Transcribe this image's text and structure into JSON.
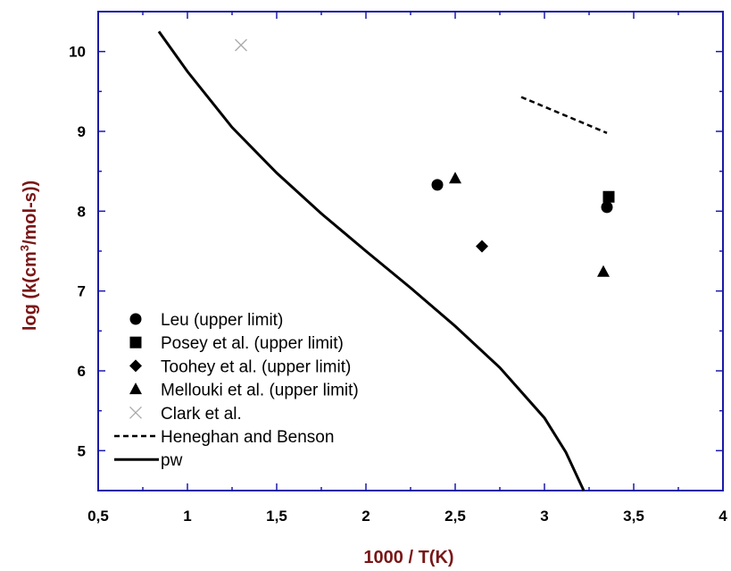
{
  "chart_data": {
    "type": "scatter",
    "title": "",
    "xlabel": "1000 / T(K)",
    "ylabel_main": "log (k(cm",
    "ylabel_sup": "3",
    "ylabel_tail": "/mol-s))",
    "xlim": [
      0.5,
      4.0
    ],
    "ylim": [
      4.5,
      10.5
    ],
    "x_ticks": [
      0.5,
      1.0,
      1.5,
      2.0,
      2.5,
      3.0,
      3.5,
      4.0
    ],
    "x_tick_labels": [
      "0,5",
      "1",
      "1,5",
      "2",
      "2,5",
      "3",
      "3,5",
      "4"
    ],
    "y_ticks": [
      5,
      6,
      7,
      8,
      9,
      10
    ],
    "y_tick_labels": [
      "5",
      "6",
      "7",
      "8",
      "9",
      "10"
    ],
    "grid": false,
    "legend_position": "bottom-left",
    "frame_color": "#1a1aa6",
    "axis_title_color": "#7a1616",
    "series": [
      {
        "name": "Leu (upper limit)",
        "marker": "circle",
        "color": "#000000",
        "points": [
          [
            2.4,
            8.33
          ],
          [
            3.35,
            8.05
          ]
        ]
      },
      {
        "name": "Posey et al. (upper limit)",
        "marker": "square",
        "color": "#000000",
        "points": [
          [
            3.36,
            8.18
          ]
        ]
      },
      {
        "name": "Toohey et al. (upper limit)",
        "marker": "diamond",
        "color": "#000000",
        "points": [
          [
            2.65,
            7.56
          ]
        ]
      },
      {
        "name": "Mellouki et al. (upper limit)",
        "marker": "triangle",
        "color": "#000000",
        "points": [
          [
            2.5,
            8.41
          ],
          [
            3.33,
            7.24
          ]
        ]
      },
      {
        "name": "Clark et al.",
        "marker": "x",
        "color": "#aaaaaa",
        "points": [
          [
            1.3,
            10.08
          ]
        ]
      },
      {
        "name": "Heneghan and Benson",
        "marker": "dashed-line",
        "color": "#000000",
        "points": [
          [
            2.87,
            9.43
          ],
          [
            3.35,
            8.98
          ]
        ]
      },
      {
        "name": "pw",
        "marker": "solid-line",
        "color": "#000000",
        "points": [
          [
            0.84,
            10.25
          ],
          [
            1.0,
            9.75
          ],
          [
            1.25,
            9.05
          ],
          [
            1.5,
            8.48
          ],
          [
            1.75,
            7.97
          ],
          [
            2.0,
            7.5
          ],
          [
            2.25,
            7.04
          ],
          [
            2.5,
            6.56
          ],
          [
            2.75,
            6.04
          ],
          [
            3.0,
            5.41
          ],
          [
            3.12,
            4.98
          ],
          [
            3.22,
            4.5
          ]
        ]
      }
    ]
  }
}
